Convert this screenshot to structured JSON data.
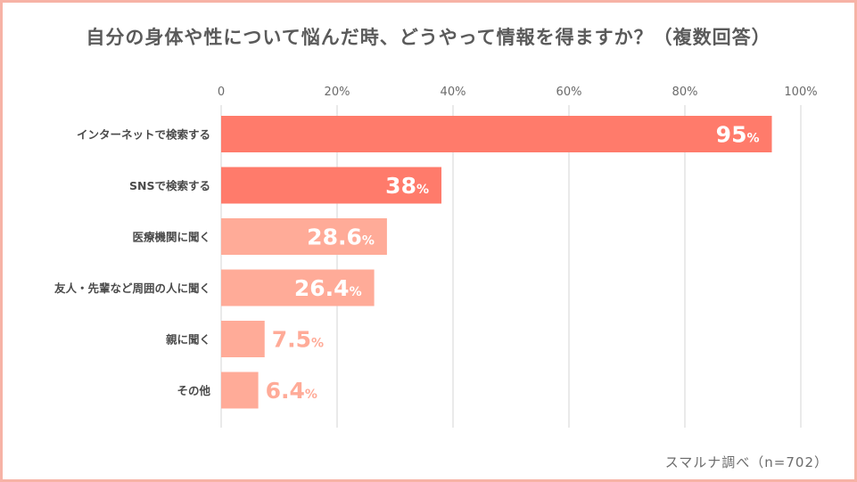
{
  "chart_data": {
    "type": "bar",
    "orientation": "horizontal",
    "title": "自分の身体や性について悩んだ時、どうやって情報を得ますか？（複数回答）",
    "xlabel": "",
    "ylabel": "",
    "xlim": [
      0,
      100
    ],
    "x_ticks": [
      {
        "value": 0,
        "label": "0"
      },
      {
        "value": 20,
        "label": "20%"
      },
      {
        "value": 40,
        "label": "40%"
      },
      {
        "value": 60,
        "label": "60%"
      },
      {
        "value": 80,
        "label": "80%"
      },
      {
        "value": 100,
        "label": "100%"
      }
    ],
    "categories": [
      "インターネットで検索する",
      "SNSで検索する",
      "医療機関に聞く",
      "友人・先輩など周囲の人に聞く",
      "親に聞く",
      "その他"
    ],
    "values": [
      95,
      38,
      28.6,
      26.4,
      7.5,
      6.4
    ],
    "value_labels": [
      "95",
      "38",
      "28.6",
      "26.4",
      "7.5",
      "6.4"
    ],
    "value_unit": "%",
    "colors": [
      "#ff7b6b",
      "#ff7b6b",
      "#ffab98",
      "#ffab98",
      "#ffab98",
      "#ffab98"
    ],
    "grid": true,
    "source": "スマルナ調べ（n=702）"
  }
}
